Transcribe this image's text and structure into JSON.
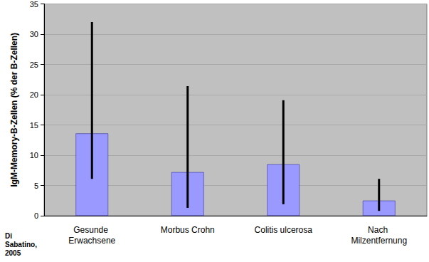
{
  "chart_data": {
    "type": "bar",
    "y_label": "IgM-Memory-B-Zellen (% der B-Zellen)",
    "categories": [
      "Gesunde Erwachsene",
      "Morbus Crohn",
      "Colitis ulcerosa",
      "Nach Milzentfernung"
    ],
    "values": [
      13.6,
      7.2,
      8.5,
      2.5
    ],
    "range_low": [
      6.1,
      1.3,
      1.9,
      0.8
    ],
    "range_high": [
      32.0,
      21.4,
      19.1,
      6.1
    ],
    "color": "#9999ff",
    "ylim": [
      0,
      35
    ],
    "yticks": [
      0,
      5,
      10,
      15,
      20,
      25,
      30,
      35
    ],
    "grid": true,
    "annotation": "Di Sabatino, 2005"
  }
}
